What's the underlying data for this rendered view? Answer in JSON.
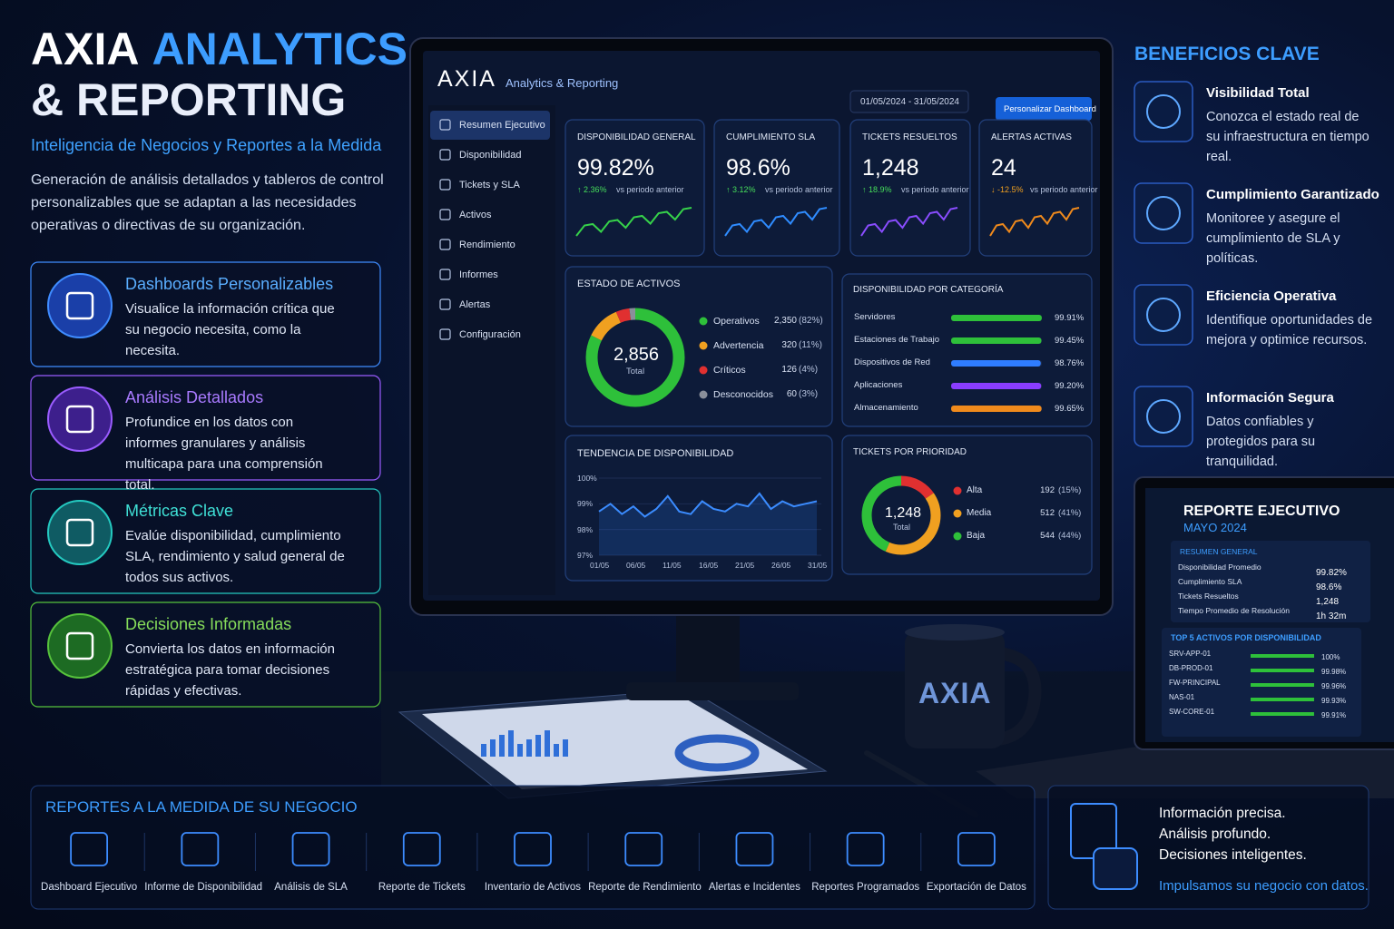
{
  "header": {
    "title_1": "AXIA",
    "title_2": "ANALYTICS",
    "title_3": "& REPORTING",
    "subtitle": "Inteligencia de Negocios y Reportes a la Medida",
    "description": "Generación de análisis detallados y tableros de control personalizables que se adaptan a las necesidades operativas o directivas de su organización."
  },
  "features": [
    {
      "title": "Dashboards Personalizables",
      "text": "Visualice la información crítica que su negocio necesita, como la necesita."
    },
    {
      "title": "Análisis Detallados",
      "text": "Profundice en los datos con informes granulares y análisis multicapa para una comprensión total."
    },
    {
      "title": "Métricas Clave",
      "text": "Evalúe disponibilidad, cumplimiento SLA, rendimiento y salud general de todos sus activos."
    },
    {
      "title": "Decisiones Informadas",
      "text": "Convierta los datos en información estratégica para tomar decisiones rápidas y efectivas."
    }
  ],
  "dashboard": {
    "brand": "AXIA",
    "product": "Analytics & Reporting",
    "date_range": "01/05/2024 - 31/05/2024",
    "button": "Personalizar Dashboard",
    "nav": [
      "Resumen Ejecutivo",
      "Disponibilidad",
      "Tickets y SLA",
      "Activos",
      "Rendimiento",
      "Informes",
      "Alertas",
      "Configuración"
    ],
    "kpis": [
      {
        "title": "DISPONIBILIDAD GENERAL",
        "value": "99.82%",
        "change": "↑ 2.36%",
        "note": "vs periodo anterior"
      },
      {
        "title": "CUMPLIMIENTO SLA",
        "value": "98.6%",
        "change": "↑ 3.12%",
        "note": "vs periodo anterior"
      },
      {
        "title": "TICKETS RESUELTOS",
        "value": "1,248",
        "change": "↑ 18.9%",
        "note": "vs periodo anterior"
      },
      {
        "title": "ALERTAS ACTIVAS",
        "value": "24",
        "change": "↓ -12.5%",
        "note": "vs periodo anterior"
      }
    ],
    "assets": {
      "title": "ESTADO DE ACTIVOS",
      "total": "2,856",
      "total_label": "Total",
      "items": [
        {
          "name": "Operativos",
          "value": 2350,
          "label": "2,350",
          "percent": "(82%)"
        },
        {
          "name": "Advertencia",
          "value": 320,
          "percent": "(11%)"
        },
        {
          "name": "Críticos",
          "value": 126,
          "percent": "(4%)"
        },
        {
          "name": "Desconocidos",
          "value": 60,
          "percent": "(3%)"
        }
      ]
    },
    "categories": {
      "title": "DISPONIBILIDAD POR CATEGORÍA",
      "items": [
        {
          "name": "Servidores",
          "value": 99.91,
          "label": "99.91%"
        },
        {
          "name": "Estaciones de Trabajo",
          "value": 99.45,
          "label": "99.45%"
        },
        {
          "name": "Dispositivos de Red",
          "value": 98.76,
          "label": "98.76%"
        },
        {
          "name": "Aplicaciones",
          "value": 99.2,
          "label": "99.20%"
        },
        {
          "name": "Almacenamiento",
          "value": 99.65,
          "label": "99.65%"
        }
      ]
    },
    "trend": {
      "title": "TENDENCIA DE DISPONIBILIDAD",
      "yticks": [
        {
          "value": 100,
          "label": "100%"
        },
        {
          "value": 99,
          "label": "99%"
        },
        {
          "value": 98,
          "label": "98%"
        },
        {
          "value": 97,
          "label": "97%"
        }
      ],
      "xticks": [
        "01/05",
        "06/05",
        "11/05",
        "16/05",
        "21/05",
        "26/05",
        "31/05"
      ],
      "values": [
        98.7,
        99.0,
        98.6,
        98.9,
        98.5,
        98.8,
        99.3,
        98.7,
        98.6,
        99.1,
        98.8,
        98.7,
        99.0,
        98.9,
        99.4,
        98.8,
        99.1,
        98.9,
        99.0,
        99.1
      ]
    },
    "tickets": {
      "title": "TICKETS POR PRIORIDAD",
      "total": "1,248",
      "total_label": "Total",
      "items": [
        {
          "name": "Alta",
          "value": 192,
          "percent": "(15%)"
        },
        {
          "name": "Media",
          "value": 512,
          "percent": "(41%)"
        },
        {
          "name": "Baja",
          "value": 544,
          "percent": "(44%)"
        }
      ]
    }
  },
  "benefits": {
    "title": "BENEFICIOS CLAVE",
    "items": [
      {
        "title": "Visibilidad Total",
        "text": "Conozca el estado real de su infraestructura en tiempo real."
      },
      {
        "title": "Cumplimiento Garantizado",
        "text": "Monitoree y asegure el cumplimiento de SLA y políticas."
      },
      {
        "title": "Eficiencia Operativa",
        "text": "Identifique oportunidades de mejora y optimice recursos."
      },
      {
        "title": "Información Segura",
        "text": "Datos confiables y protegidos para su tranquilidad."
      }
    ]
  },
  "laptop": {
    "title": "REPORTE EJECUTIVO",
    "period": "MAYO 2024",
    "summary_title": "RESUMEN GENERAL",
    "summary": [
      {
        "label": "Disponibilidad Promedio",
        "value": "99.82%"
      },
      {
        "label": "Cumplimiento SLA",
        "value": "98.6%"
      },
      {
        "label": "Tickets Resueltos",
        "value": "1,248"
      },
      {
        "label": "Tiempo Promedio de Resolución",
        "value": "1h 32m"
      }
    ],
    "top_title": "TOP 5 ACTIVOS POR DISPONIBILIDAD",
    "top": [
      {
        "name": "SRV-APP-01",
        "value": 100,
        "label": "100%"
      },
      {
        "name": "DB-PROD-01",
        "value": 99.98,
        "label": "99.98%"
      },
      {
        "name": "FW-PRINCIPAL",
        "value": 99.96,
        "label": "99.96%"
      },
      {
        "name": "NAS-01",
        "value": 99.93,
        "label": "99.93%"
      },
      {
        "name": "SW-CORE-01",
        "value": 99.91,
        "label": "99.91%"
      }
    ]
  },
  "mug": "AXIA",
  "reports": {
    "title": "REPORTES A LA MEDIDA DE SU NEGOCIO",
    "items": [
      "Dashboard Ejecutivo",
      "Informe de Disponibilidad",
      "Análisis de SLA",
      "Reporte de Tickets",
      "Inventario de Activos",
      "Reporte de Rendimiento",
      "Alertas e Incidentes",
      "Reportes Programados",
      "Exportación de Datos"
    ]
  },
  "tagline": {
    "lines": [
      "Información precisa.",
      "Análisis profundo.",
      "Decisiones inteligentes."
    ],
    "cta": "Impulsamos su negocio con datos."
  }
}
